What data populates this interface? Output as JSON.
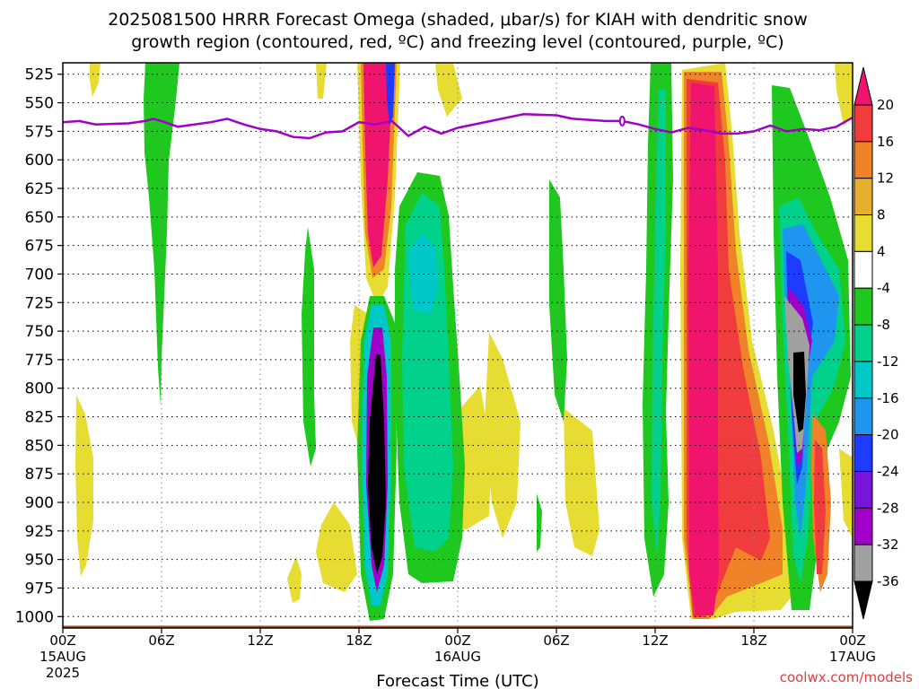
{
  "chart_data": {
    "type": "heatmap",
    "title_lines": [
      "2025081500 HRRR Forecast Omega (shaded, μbar/s) for KIAH with dendritic snow",
      "growth region (contoured, red, ºC) and freezing level (contoured, purple, ºC)"
    ],
    "xlabel": "Forecast Time (UTC)",
    "credit": "coolwx.com/models",
    "x_ticks": [
      {
        "hour": 0,
        "label": "00Z",
        "sub": "15AUG",
        "sub2": "2025"
      },
      {
        "hour": 6,
        "label": "06Z"
      },
      {
        "hour": 12,
        "label": "12Z"
      },
      {
        "hour": 18,
        "label": "18Z"
      },
      {
        "hour": 24,
        "label": "00Z",
        "sub": "16AUG"
      },
      {
        "hour": 30,
        "label": "06Z"
      },
      {
        "hour": 36,
        "label": "12Z"
      },
      {
        "hour": 42,
        "label": "18Z"
      },
      {
        "hour": 48,
        "label": "00Z",
        "sub": "17AUG"
      }
    ],
    "x_range_hours": [
      0,
      48
    ],
    "y_axis": {
      "units": "hPa",
      "inverted": true,
      "range": [
        515,
        1010
      ],
      "ticks": [
        525,
        550,
        575,
        600,
        625,
        650,
        675,
        700,
        725,
        750,
        775,
        800,
        825,
        850,
        875,
        900,
        925,
        950,
        975,
        1000
      ]
    },
    "grid": true,
    "colorbar": {
      "orientation": "vertical",
      "position": "right",
      "labels": [
        "20",
        "16",
        "12",
        "8",
        "4",
        "-4",
        "-8",
        "-12",
        "-16",
        "-20",
        "-24",
        "-28",
        "-32",
        "-36"
      ],
      "bins": [
        {
          "range": ">20",
          "color": "#f0146e"
        },
        {
          "range": "16 to 20",
          "color": "#f03c3c"
        },
        {
          "range": "12 to 16",
          "color": "#f08228"
        },
        {
          "range": "8 to 12",
          "color": "#e6af2d"
        },
        {
          "range": "4 to 8",
          "color": "#e6dc32"
        },
        {
          "range": "-4 to 4",
          "color": "#ffffff"
        },
        {
          "range": "-8 to -4",
          "color": "#1ec81e"
        },
        {
          "range": "-12 to -8",
          "color": "#00d28c"
        },
        {
          "range": "-16 to -12",
          "color": "#00c8c8"
        },
        {
          "range": "-20 to -16",
          "color": "#1e96f0"
        },
        {
          "range": "-24 to -20",
          "color": "#1e3cff"
        },
        {
          "range": "-28 to -24",
          "color": "#7814dc"
        },
        {
          "range": "-32 to -28",
          "color": "#a000c8"
        },
        {
          "range": "-36 to -32",
          "color": "#a0a0a0"
        },
        {
          "range": "<-36",
          "color": "#000000"
        }
      ]
    },
    "freezing_level": {
      "color": "#a000c8",
      "points": [
        [
          0,
          567
        ],
        [
          1,
          566
        ],
        [
          2,
          569
        ],
        [
          4,
          568
        ],
        [
          5,
          566
        ],
        [
          5.5,
          564
        ],
        [
          6,
          566
        ],
        [
          7,
          571
        ],
        [
          9,
          567
        ],
        [
          10,
          564
        ],
        [
          11,
          569
        ],
        [
          12,
          573
        ],
        [
          13,
          575
        ],
        [
          14,
          580
        ],
        [
          15,
          581
        ],
        [
          16,
          576
        ],
        [
          17,
          575
        ],
        [
          18,
          567
        ],
        [
          19,
          569
        ],
        [
          20,
          566
        ],
        [
          21,
          579
        ],
        [
          22,
          571
        ],
        [
          23,
          577
        ],
        [
          24,
          572
        ],
        [
          26,
          566
        ],
        [
          28,
          560
        ],
        [
          30,
          561
        ],
        [
          31,
          564
        ],
        [
          33,
          566
        ],
        [
          34,
          566
        ],
        [
          35,
          569
        ],
        [
          36,
          573
        ],
        [
          37,
          576
        ],
        [
          38,
          572
        ],
        [
          39,
          574
        ],
        [
          40,
          577
        ],
        [
          41,
          577
        ],
        [
          42,
          575
        ],
        [
          43,
          570
        ],
        [
          44,
          575
        ],
        [
          45,
          573
        ],
        [
          46,
          574
        ],
        [
          47,
          571
        ],
        [
          48,
          563
        ]
      ]
    },
    "omega_features": [
      {
        "hours": [
          19.5,
          20.5
        ],
        "p": [
          515,
          700
        ],
        "max": ">20",
        "label": "upper updraft core"
      },
      {
        "hours": [
          18.5,
          21
        ],
        "p": [
          700,
          995
        ],
        "min": "<-36",
        "label": "lower-level strong descent"
      },
      {
        "hours": [
          20.5,
          24
        ],
        "p": [
          610,
          930
        ],
        "min": "-16",
        "label": "mid-level descent area"
      },
      {
        "hours": [
          36.5,
          39
        ],
        "p": [
          520,
          1010
        ],
        "max": ">20",
        "label": "deep updraft column"
      },
      {
        "hours": [
          44,
          47
        ],
        "p": [
          640,
          1000
        ],
        "min": "<-36",
        "label": "descent column"
      }
    ],
    "terrain": {
      "color": "#a0522d",
      "pressure_hpa": 1008
    }
  }
}
